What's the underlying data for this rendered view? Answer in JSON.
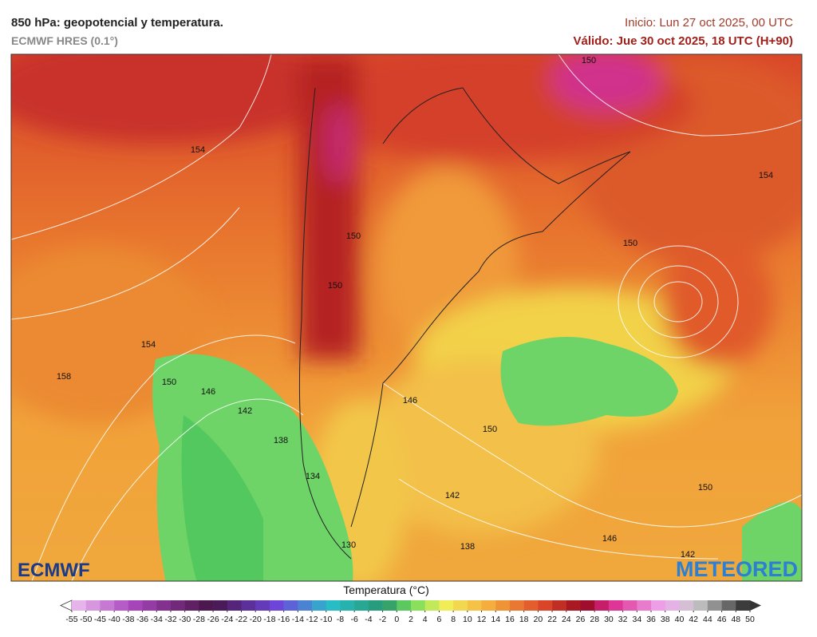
{
  "header": {
    "title": "850 hPa: geopotencial y temperatura.",
    "subtitle": "ECMWF HRES (0.1°)",
    "init": "Inicio: Lun 27 oct 2025, 00 UTC",
    "valid": "Válido: Jue 30 oct 2025, 18 UTC (H+90)"
  },
  "map": {
    "contour_labels": [
      "150",
      "154",
      "154",
      "150",
      "150",
      "150",
      "154",
      "158",
      "150",
      "146",
      "142",
      "138",
      "146",
      "150",
      "134",
      "142",
      "150",
      "138",
      "146",
      "130",
      "142"
    ],
    "logos": [
      "ECMWF",
      "METEORED"
    ]
  },
  "legend": {
    "title": "Temperatura (°C)",
    "ticks": [
      -55,
      -50,
      -45,
      -40,
      -38,
      -36,
      -34,
      -32,
      -30,
      -28,
      -26,
      -24,
      -22,
      -20,
      -18,
      -16,
      -14,
      -12,
      -10,
      -8,
      -6,
      -4,
      -2,
      0,
      2,
      4,
      6,
      8,
      10,
      12,
      14,
      16,
      18,
      20,
      22,
      24,
      26,
      28,
      30,
      32,
      34,
      36,
      38,
      40,
      42,
      44,
      46,
      48,
      50
    ]
  }
}
